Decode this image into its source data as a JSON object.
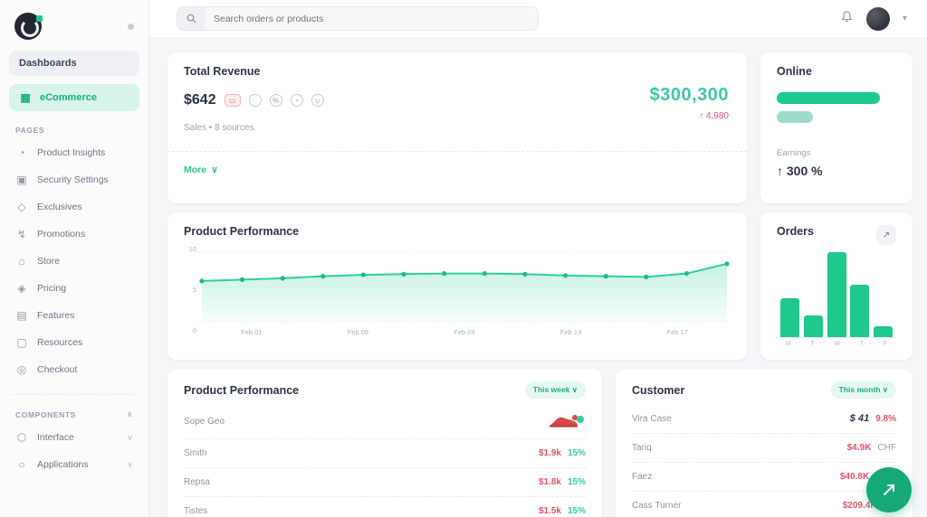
{
  "colors": {
    "accent_green": "#1ec98b",
    "teal_text": "#3cc9a6",
    "red": "#e25563",
    "active_bg": "#d9f4ea"
  },
  "sidebar": {
    "dashboards_label": "Dashboards",
    "active": {
      "icon": "cart",
      "label": "eCommerce"
    },
    "pages_label": "Pages",
    "items": [
      {
        "icon": "chart",
        "label": "Product Insights"
      },
      {
        "icon": "shield",
        "label": "Security Settings"
      },
      {
        "icon": "gem",
        "label": "Exclusives"
      },
      {
        "icon": "bolt",
        "label": "Promotions"
      },
      {
        "icon": "store",
        "label": "Store"
      },
      {
        "icon": "tag",
        "label": "Pricing"
      },
      {
        "icon": "layers",
        "label": "Features"
      },
      {
        "icon": "file",
        "label": "Resources"
      },
      {
        "icon": "users",
        "label": "Checkout"
      }
    ],
    "components_label": "Components",
    "groups": [
      {
        "icon": "box",
        "label": "Interface"
      },
      {
        "icon": "ring",
        "label": "Applications"
      }
    ]
  },
  "topbar": {
    "search_placeholder": "Search orders or products"
  },
  "revenue_card": {
    "title": "Total Revenue",
    "amount": "$642",
    "payment_icons": [
      "card-chip",
      "circle",
      "percent",
      "refresh",
      "user"
    ],
    "subtitle": "Sales  •  8 sources",
    "more_label": "More",
    "more_chevron": "∨",
    "big_amount": "$300,300",
    "delta": "↑ 4,980"
  },
  "online_card": {
    "title": "Online",
    "bars": [
      86,
      30
    ],
    "metric_label": "Earnings",
    "metric_value": "↑ 300 %"
  },
  "performance_card": {
    "title": "Product Performance",
    "chart_data": {
      "type": "area",
      "x_labels": [
        "Feb 01",
        "Feb 05",
        "Feb 09",
        "Feb 13",
        "Feb 17"
      ],
      "values": [
        5.8,
        6.0,
        6.2,
        6.5,
        6.7,
        6.8,
        6.9,
        6.9,
        6.8,
        6.6,
        6.5,
        6.4,
        6.9,
        8.3
      ],
      "ylim": [
        0,
        10
      ],
      "yticks": [
        10,
        5,
        0
      ],
      "grid": true,
      "line_color": "#2fcf9b"
    }
  },
  "orders_card": {
    "title": "Orders",
    "action_icon": "trend-up",
    "chart_data": {
      "type": "bar",
      "categories": [
        "M",
        "T",
        "W",
        "T",
        "F"
      ],
      "values": [
        45,
        25,
        98,
        60,
        12
      ],
      "ylim": [
        0,
        100
      ]
    }
  },
  "products_card": {
    "title": "Product Performance",
    "badge": "This week  ∨",
    "rows": [
      {
        "name": "Sope Geo",
        "value": "",
        "percent": "",
        "image": "red-sneaker"
      },
      {
        "name": "Smith",
        "value": "$1.9k",
        "percent": "15%"
      },
      {
        "name": "Repsa",
        "value": "$1.8k",
        "percent": "15%"
      },
      {
        "name": "Tistes",
        "value": "$1.5k",
        "percent": "15%"
      }
    ]
  },
  "customers_card": {
    "title": "Customer",
    "badge": "This month  ∨",
    "rows": [
      {
        "name": "Vira Case",
        "value": "$ 41",
        "percent": "9.8%",
        "emphasis": "dark"
      },
      {
        "name": "Tariq",
        "value": "$4.9K",
        "percent": "CHF",
        "emphasis": "red"
      },
      {
        "name": "Faez",
        "value": "$40.8K",
        "percent": "1.5%",
        "emphasis": "red"
      },
      {
        "name": "Cass Turner",
        "value": "$209.4K",
        "percent": "7%",
        "emphasis": "red"
      }
    ]
  },
  "fab": {
    "icon": "send-arrow"
  }
}
